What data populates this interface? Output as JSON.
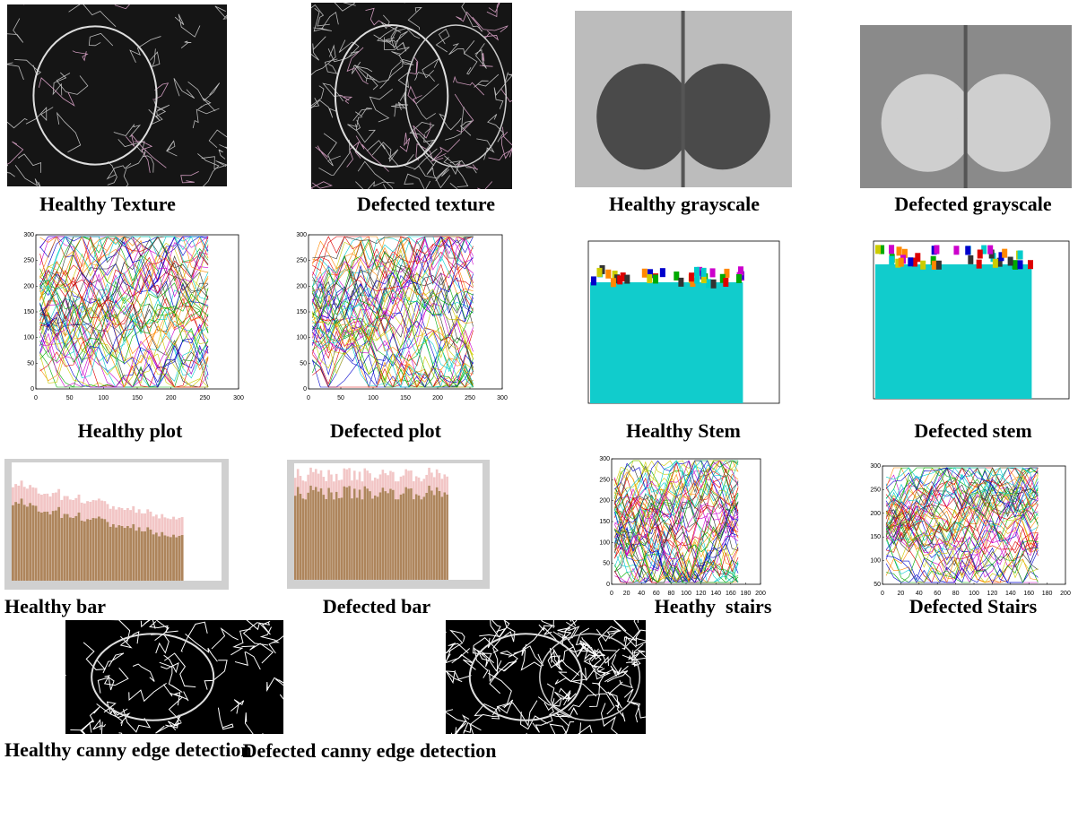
{
  "panels": [
    {
      "caption": "Healthy Texture"
    },
    {
      "caption": "Defected texture"
    },
    {
      "caption": "Healthy grayscale"
    },
    {
      "caption": "Defected grayscale"
    },
    {
      "caption": "Healthy plot",
      "x_ticks": [
        0,
        50,
        100,
        150,
        200,
        250,
        300
      ],
      "y_ticks": [
        0,
        50,
        100,
        150,
        200,
        250,
        300
      ]
    },
    {
      "caption": "Defected plot",
      "x_ticks": [
        0,
        50,
        100,
        150,
        200,
        250,
        300
      ],
      "y_ticks": [
        0,
        50,
        100,
        150,
        200,
        250,
        300
      ]
    },
    {
      "caption": "Healthy Stem"
    },
    {
      "caption": "Defected stem"
    },
    {
      "caption": "Healthy bar"
    },
    {
      "caption": "Defected bar"
    },
    {
      "caption": "Heathy  stairs",
      "x_ticks": [
        0,
        20,
        40,
        60,
        80,
        100,
        120,
        140,
        160,
        180,
        200
      ],
      "y_ticks": [
        0,
        50,
        100,
        150,
        200,
        250,
        300
      ]
    },
    {
      "caption": "Defected Stairs",
      "x_ticks": [
        0,
        20,
        40,
        60,
        80,
        100,
        120,
        140,
        160,
        180,
        200
      ],
      "y_ticks": [
        50,
        100,
        150,
        200,
        250,
        300
      ]
    },
    {
      "caption": "Healthy canny edge detection"
    },
    {
      "caption": "Defected canny edge detection"
    }
  ]
}
